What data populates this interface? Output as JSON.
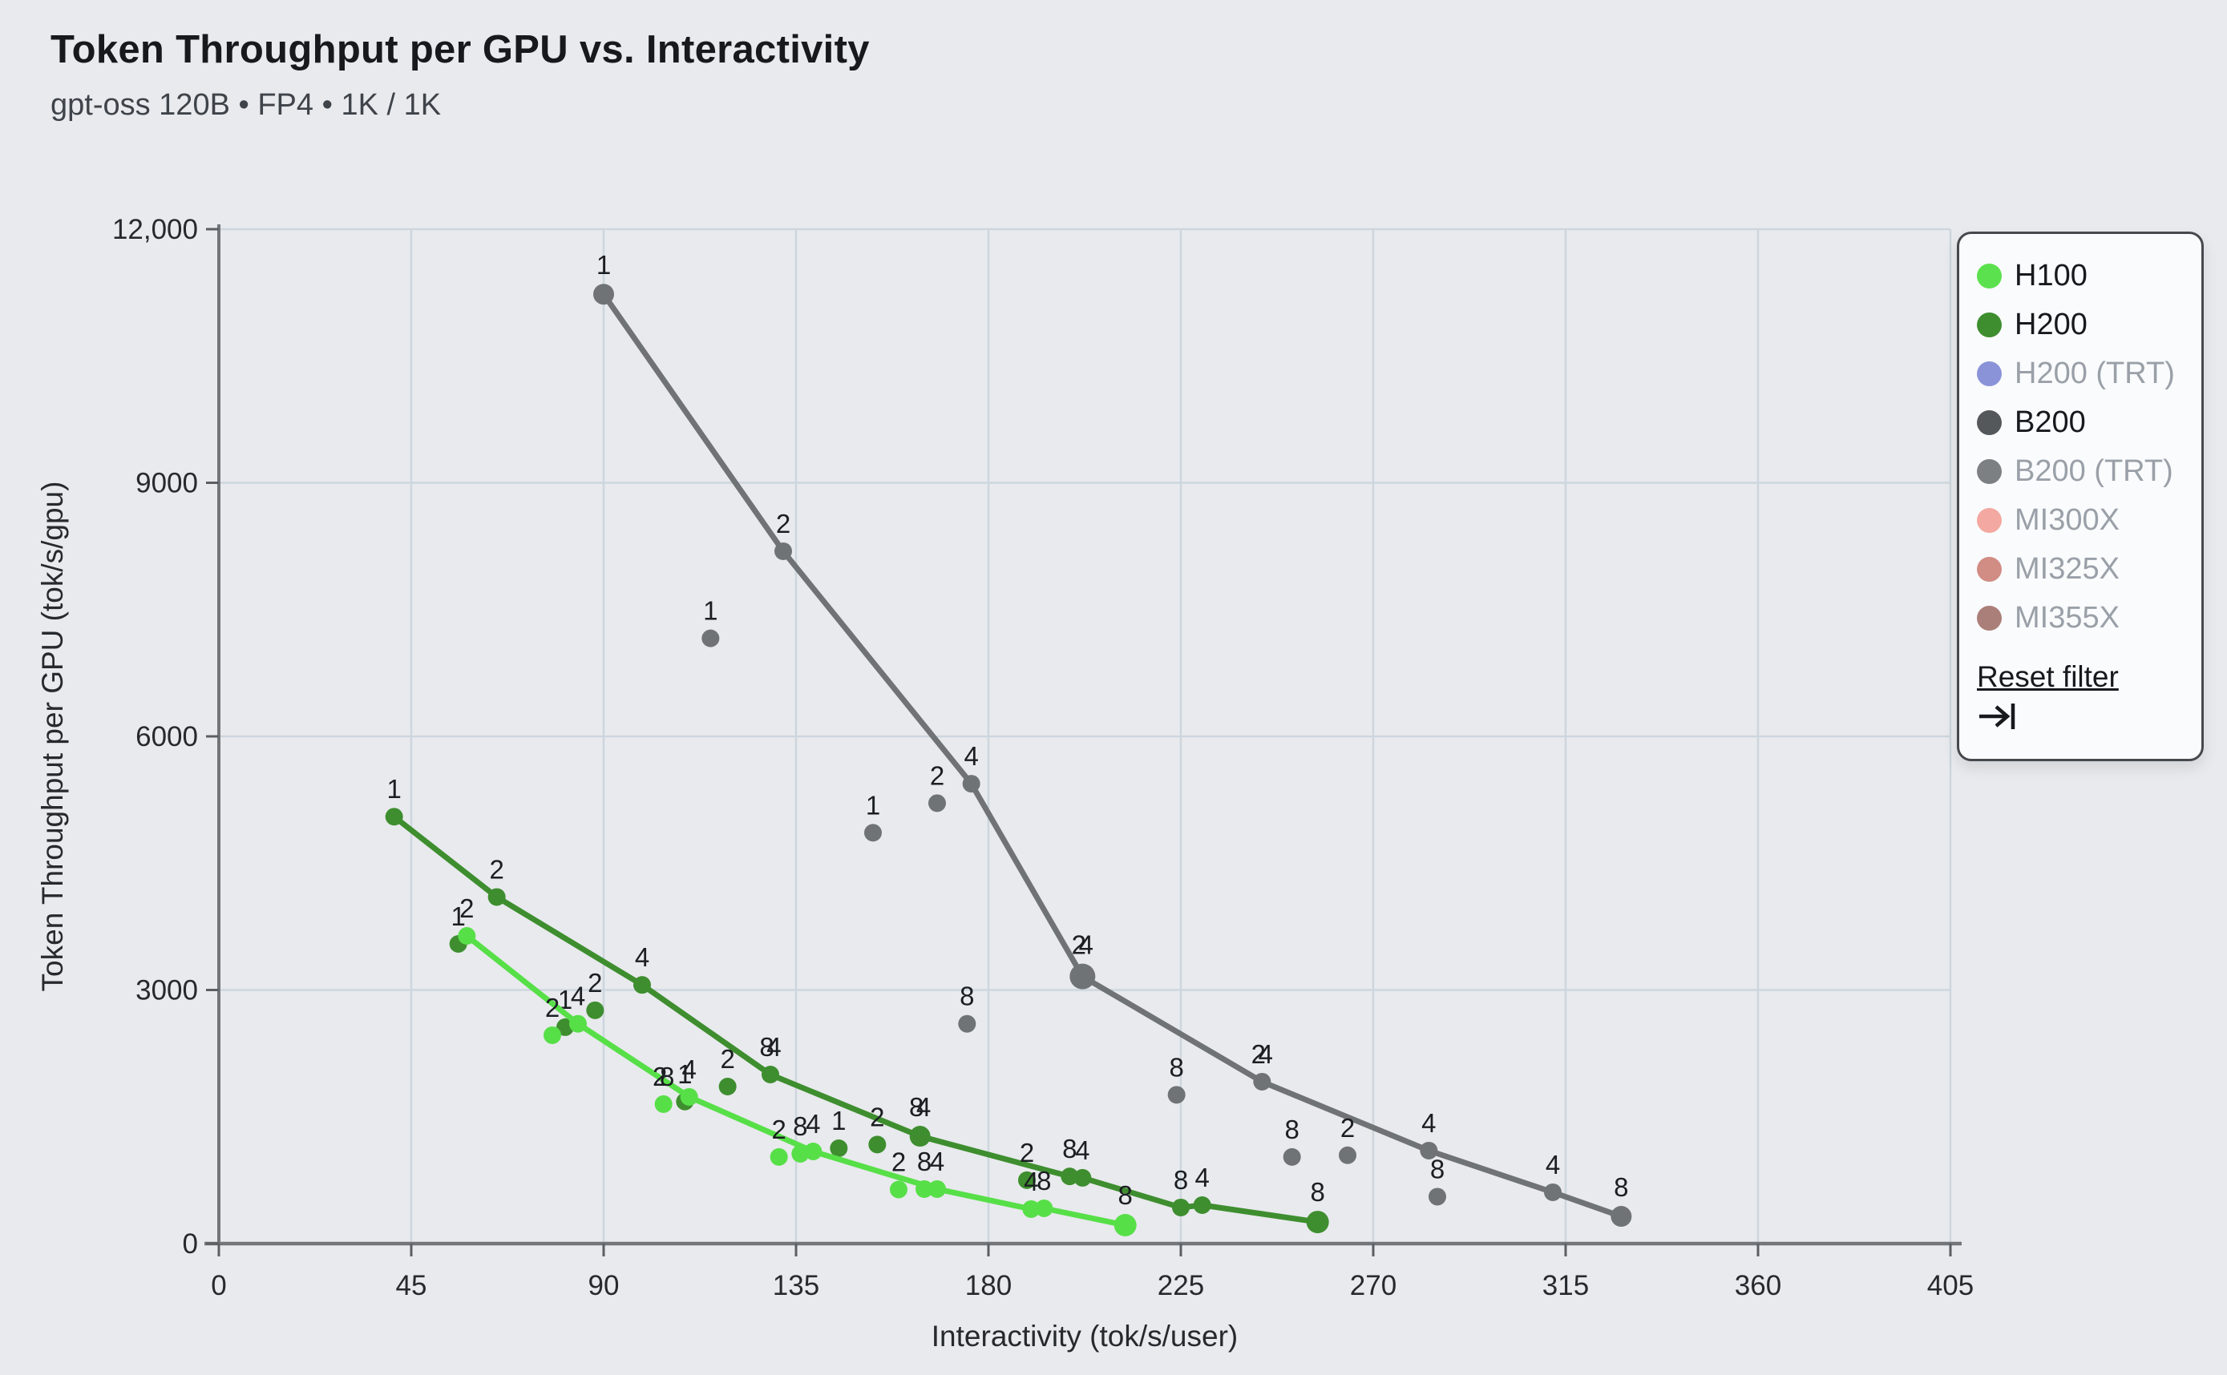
{
  "header": {
    "title": "Token Throughput per GPU vs. Interactivity",
    "subtitle": "gpt-oss 120B • FP4 • 1K / 1K"
  },
  "legend": {
    "items": [
      {
        "label": "H100",
        "color": "#5ce14e",
        "active": true
      },
      {
        "label": "H200",
        "color": "#3e8e2f",
        "active": true
      },
      {
        "label": "H200 (TRT)",
        "color": "#8b93d8",
        "active": false
      },
      {
        "label": "B200",
        "color": "#54585b",
        "active": true
      },
      {
        "label": "B200 (TRT)",
        "color": "#7c8082",
        "active": false
      },
      {
        "label": "MI300X",
        "color": "#f3a8a1",
        "active": false
      },
      {
        "label": "MI325X",
        "color": "#d18c84",
        "active": false
      },
      {
        "label": "MI355X",
        "color": "#ab7f79",
        "active": false
      }
    ],
    "reset_label": "Reset filter",
    "reset_icon": "arrow-to-bar-icon"
  },
  "chart_data": {
    "type": "scatter",
    "title": "Token Throughput per GPU vs. Interactivity",
    "subtitle": "gpt-oss 120B • FP4 • 1K / 1K",
    "xlabel": "Interactivity (tok/s/user)",
    "ylabel": "Token Throughput per GPU (tok/s/gpu)",
    "xlim": [
      0,
      405
    ],
    "ylim": [
      0,
      12000
    ],
    "x_ticks": [
      0,
      45,
      90,
      135,
      180,
      225,
      270,
      315,
      360,
      405
    ],
    "y_ticks": [
      0,
      3000,
      6000,
      9000,
      12000
    ],
    "y_tick_labels": [
      "0",
      "3000",
      "6000",
      "9000",
      "12,000"
    ],
    "grid": true,
    "legend_position": "top-right",
    "series": [
      {
        "name": "B200",
        "color": "#6f7376",
        "line": [
          {
            "x": 90,
            "y": 11230,
            "labels": [
              "1"
            ],
            "r": 13
          },
          {
            "x": 132,
            "y": 8190,
            "labels": [
              "2"
            ]
          },
          {
            "x": 176,
            "y": 5440,
            "labels": [
              "4"
            ]
          },
          {
            "x": 202,
            "y": 3160,
            "labels": [
              "2",
              "4"
            ],
            "r": 16
          },
          {
            "x": 244,
            "y": 1915,
            "labels": [
              "2",
              "4"
            ]
          },
          {
            "x": 283,
            "y": 1100,
            "labels": [
              "4"
            ]
          },
          {
            "x": 312,
            "y": 607,
            "labels": [
              "4"
            ]
          },
          {
            "x": 328,
            "y": 322,
            "labels": [
              "8"
            ],
            "r": 13
          }
        ],
        "scatter": [
          {
            "x": 115,
            "y": 7160,
            "labels": [
              "1"
            ]
          },
          {
            "x": 153,
            "y": 4860,
            "labels": [
              "1"
            ]
          },
          {
            "x": 168,
            "y": 5210,
            "labels": [
              "2"
            ]
          },
          {
            "x": 175,
            "y": 2600,
            "labels": [
              "8"
            ]
          },
          {
            "x": 224,
            "y": 1760,
            "labels": [
              "8"
            ]
          },
          {
            "x": 251,
            "y": 1025,
            "labels": [
              "8"
            ]
          },
          {
            "x": 264,
            "y": 1045,
            "labels": [
              "2"
            ]
          },
          {
            "x": 285,
            "y": 555,
            "labels": [
              "8"
            ]
          }
        ]
      },
      {
        "name": "H200",
        "color": "#3e8e2f",
        "line": [
          {
            "x": 41,
            "y": 5050,
            "labels": [
              "1"
            ]
          },
          {
            "x": 65,
            "y": 4100,
            "labels": [
              "2"
            ]
          },
          {
            "x": 99,
            "y": 3060,
            "labels": [
              "4"
            ]
          },
          {
            "x": 129,
            "y": 2000,
            "labels": [
              "8",
              "4"
            ]
          },
          {
            "x": 164,
            "y": 1270,
            "labels": [
              "8",
              "4"
            ],
            "r": 13
          },
          {
            "x": 199,
            "y": 795,
            "labels": [
              "8"
            ]
          },
          {
            "x": 202,
            "y": 778,
            "labels": [
              "4"
            ]
          },
          {
            "x": 225,
            "y": 427,
            "labels": [
              "8"
            ]
          },
          {
            "x": 230,
            "y": 455,
            "labels": [
              "4"
            ]
          },
          {
            "x": 257,
            "y": 255,
            "labels": [
              "8"
            ],
            "r": 14
          }
        ],
        "scatter": [
          {
            "x": 56,
            "y": 3545,
            "labels": [
              "1"
            ]
          },
          {
            "x": 81,
            "y": 2560,
            "labels": [
              "1"
            ]
          },
          {
            "x": 88,
            "y": 2760,
            "labels": [
              "2"
            ]
          },
          {
            "x": 109,
            "y": 1680,
            "labels": [
              "1"
            ]
          },
          {
            "x": 119,
            "y": 1858,
            "labels": [
              "2"
            ]
          },
          {
            "x": 145,
            "y": 1128,
            "labels": [
              "1"
            ]
          },
          {
            "x": 154,
            "y": 1172,
            "labels": [
              "2"
            ]
          },
          {
            "x": 189,
            "y": 750,
            "labels": [
              "2"
            ]
          }
        ]
      },
      {
        "name": "H100",
        "color": "#57df48",
        "line": [
          {
            "x": 58,
            "y": 3640,
            "labels": [
              "2"
            ]
          },
          {
            "x": 84,
            "y": 2600,
            "labels": [
              "4"
            ]
          },
          {
            "x": 110,
            "y": 1735,
            "labels": [
              "4"
            ]
          },
          {
            "x": 139,
            "y": 1090,
            "labels": [
              "4"
            ]
          },
          {
            "x": 168,
            "y": 645,
            "labels": [
              "4"
            ]
          },
          {
            "x": 190,
            "y": 408,
            "labels": [
              "4"
            ]
          },
          {
            "x": 193,
            "y": 417,
            "labels": [
              "8"
            ]
          },
          {
            "x": 212,
            "y": 218,
            "labels": [
              "8"
            ],
            "r": 14
          }
        ],
        "scatter": [
          {
            "x": 78,
            "y": 2465,
            "labels": [
              "2"
            ]
          },
          {
            "x": 104,
            "y": 1650,
            "labels": [
              "2",
              "8"
            ]
          },
          {
            "x": 131,
            "y": 1025,
            "labels": [
              "2"
            ]
          },
          {
            "x": 136,
            "y": 1062,
            "labels": [
              "8"
            ]
          },
          {
            "x": 159,
            "y": 640,
            "labels": [
              "2"
            ]
          },
          {
            "x": 165,
            "y": 645,
            "labels": [
              "8"
            ]
          }
        ]
      }
    ]
  }
}
